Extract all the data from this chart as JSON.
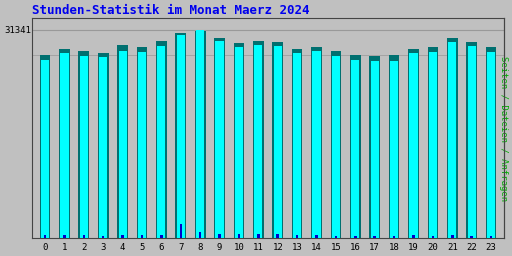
{
  "title": "Stunden-Statistik im Monat Maerz 2024",
  "title_color": "#0000ee",
  "title_fontsize": 9,
  "ylabel_right": "Seiten / Dateien / Anfragen",
  "ylabel_right_color": "#00aa00",
  "background_color": "#c0c0c0",
  "plot_bg_color": "#c0c0c0",
  "hours": [
    0,
    1,
    2,
    3,
    4,
    5,
    6,
    7,
    8,
    9,
    10,
    11,
    12,
    13,
    14,
    15,
    16,
    17,
    18,
    19,
    20,
    21,
    22,
    23
  ],
  "seiten": [
    26800,
    27800,
    27400,
    27200,
    28200,
    28000,
    28900,
    30600,
    31341,
    29600,
    28800,
    29000,
    28900,
    27800,
    28100,
    27400,
    26800,
    26600,
    26700,
    27800,
    28000,
    29500,
    28900,
    28000
  ],
  "dateien": [
    27500,
    28400,
    28200,
    27800,
    29000,
    28700,
    29600,
    30900,
    31200,
    30100,
    29400,
    29600,
    29500,
    28500,
    28800,
    28100,
    27600,
    27400,
    27500,
    28500,
    28700,
    30100,
    29500,
    28700
  ],
  "anfragen": [
    380,
    480,
    390,
    290,
    390,
    390,
    490,
    2100,
    860,
    670,
    580,
    670,
    570,
    390,
    390,
    290,
    240,
    290,
    340,
    390,
    340,
    390,
    340,
    290
  ],
  "ymax": 31341,
  "ytick_label": "31341",
  "bar_color_seiten": "#00ffff",
  "bar_color_dateien": "#007070",
  "bar_color_anfragen": "#0000cc",
  "grid_color": "#999999",
  "border_color": "#444444",
  "font_family": "monospace"
}
